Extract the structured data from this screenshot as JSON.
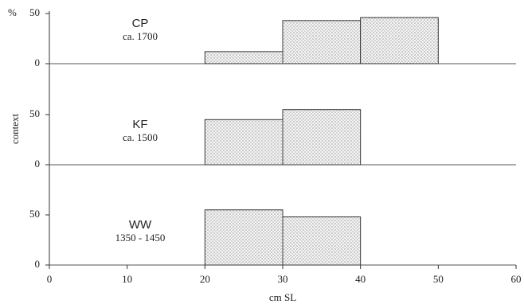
{
  "chart_data": [
    {
      "type": "histogram",
      "title": "CP",
      "subtitle": "ca. 1700",
      "y_unit": "%",
      "bins": [
        20,
        30,
        40,
        50
      ],
      "values": [
        12,
        43,
        46
      ],
      "xlim": [
        0,
        60
      ],
      "ylim": [
        0,
        60
      ],
      "yticks": [
        0,
        50
      ]
    },
    {
      "type": "histogram",
      "title": "KF",
      "subtitle": "ca. 1500",
      "ylabel": "context",
      "bins": [
        20,
        30,
        40
      ],
      "values": [
        45,
        55
      ],
      "xlim": [
        0,
        60
      ],
      "ylim": [
        0,
        60
      ],
      "yticks": [
        0,
        50
      ]
    },
    {
      "type": "histogram",
      "title": "WW",
      "subtitle": "1350 - 1450",
      "xlabel": "cm SL",
      "bins": [
        20,
        30,
        40
      ],
      "values": [
        55,
        48
      ],
      "xlim": [
        0,
        60
      ],
      "ylim": [
        0,
        60
      ],
      "yticks": [
        0,
        50
      ],
      "xticks": [
        0,
        10,
        20,
        30,
        40,
        50,
        60
      ]
    }
  ]
}
